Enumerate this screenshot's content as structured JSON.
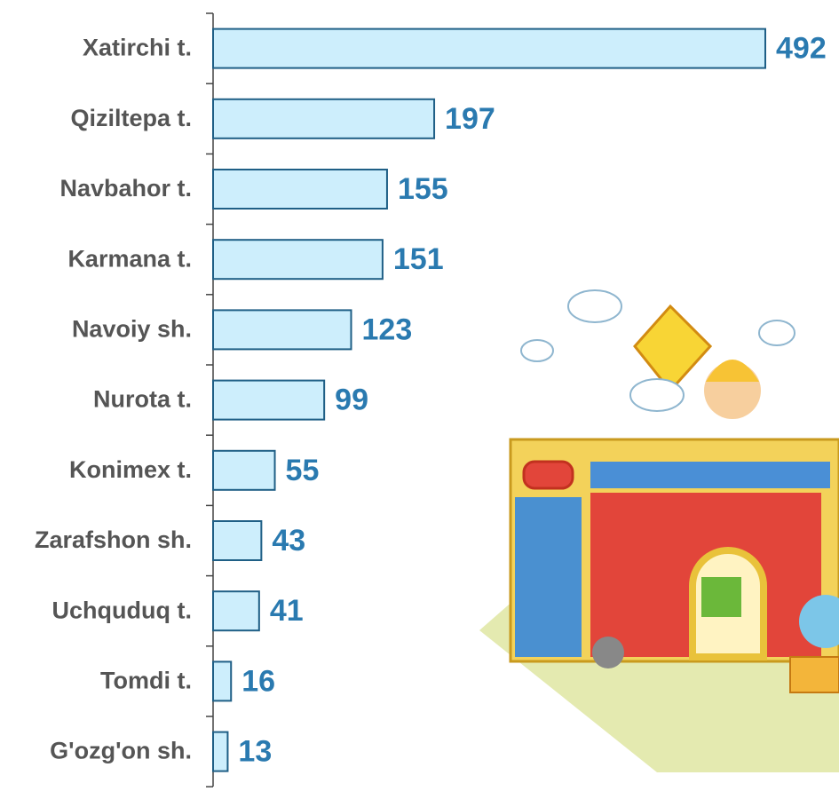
{
  "chart_data": {
    "type": "bar",
    "orientation": "horizontal",
    "categories": [
      "Xatirchi t.",
      "Qiziltepa t.",
      "Navbahor t.",
      "Karmana t.",
      "Navoiy sh.",
      "Nurota t.",
      "Konimex t.",
      "Zarafshon sh.",
      "Uchquduq t.",
      "Tomdi t.",
      "G'ozg'on sh."
    ],
    "values": [
      492,
      197,
      155,
      151,
      123,
      99,
      55,
      43,
      41,
      16,
      13
    ],
    "color": "#cdeefc",
    "edge_color": "#1f5f86",
    "label_color": "#2a7ab0"
  }
}
